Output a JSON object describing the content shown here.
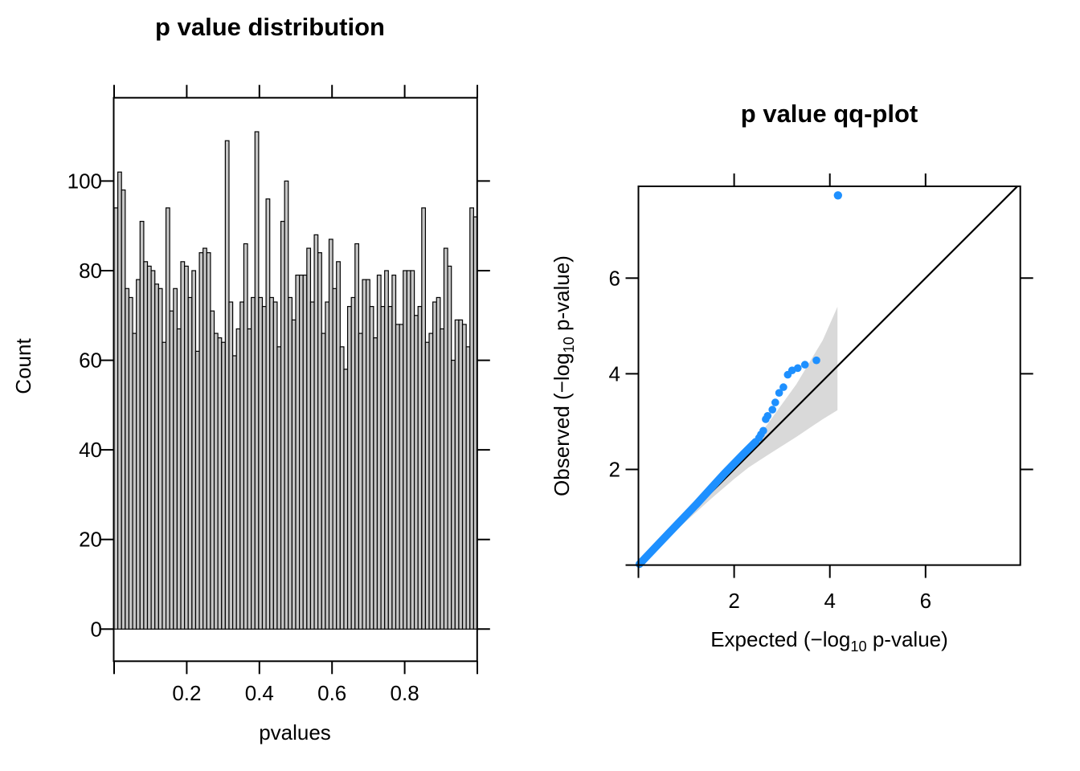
{
  "figure_background": "#ffffff",
  "chart_data": [
    {
      "id": "p-value-histogram",
      "type": "bar",
      "title": "p value distribution",
      "xlabel": "pvalues",
      "ylabel": "Count",
      "xlim": [
        0,
        1
      ],
      "ylim": [
        0,
        113
      ],
      "grid": false,
      "legend": "none",
      "x_ticks_labeled": [
        0.2,
        0.4,
        0.6,
        0.8
      ],
      "x_tick_labels": [
        "0.2",
        "0.4",
        "0.6",
        "0.8"
      ],
      "x_ticks_unlabeled": [
        0,
        1
      ],
      "y_ticks": [
        0,
        20,
        40,
        60,
        80,
        100
      ],
      "y_tick_labels": [
        "0",
        "20",
        "40",
        "60",
        "80",
        "100"
      ],
      "ticks_on_all_sides": true,
      "bin_start": 0,
      "bin_width": 0.0102,
      "bar_fill": "#C6C6C6",
      "bar_stroke": "#000000",
      "counts": [
        94,
        102,
        98,
        76,
        74,
        66,
        78,
        91,
        82,
        81,
        80,
        77,
        76,
        64,
        94,
        71,
        76,
        67,
        82,
        81,
        74,
        80,
        62,
        84,
        85,
        84,
        71,
        66,
        65,
        64,
        109,
        73,
        61,
        67,
        73,
        86,
        67,
        74,
        111,
        74,
        72,
        96,
        74,
        73,
        63,
        91,
        100,
        74,
        69,
        79,
        79,
        79,
        85,
        73,
        88,
        84,
        66,
        73,
        87,
        76,
        82,
        63,
        58,
        72,
        74,
        86,
        66,
        78,
        78,
        72,
        65,
        79,
        72,
        80,
        72,
        79,
        68,
        68,
        80,
        80,
        80,
        70,
        72,
        94,
        64,
        66,
        73,
        74,
        67,
        85,
        81,
        60,
        69,
        69,
        68,
        63,
        94,
        92
      ]
    },
    {
      "id": "p-value-qqplot",
      "type": "scatter",
      "title": "p value qq-plot",
      "xlabel": "Expected (−log10 p-value)",
      "ylabel": "Observed (−log10 p-value)",
      "xlabel_rich": {
        "pre": "Expected (−log",
        "sub": "10",
        "post": " p-value)"
      },
      "ylabel_rich": {
        "pre": "Observed (−log",
        "sub": "10",
        "post": " p-value)"
      },
      "xlim": [
        0,
        7.98
      ],
      "ylim": [
        0,
        7.92
      ],
      "grid": false,
      "legend": "none",
      "x_ticks_labeled": [
        2,
        4,
        6
      ],
      "x_tick_labels": [
        "2",
        "4",
        "6"
      ],
      "x_ticks_unlabeled": [
        0
      ],
      "y_ticks_labeled": [
        2,
        4,
        6
      ],
      "y_tick_labels": [
        "2",
        "4",
        "6"
      ],
      "y_ticks_unlabeled": [
        0
      ],
      "top_ticks": [
        2,
        4,
        6
      ],
      "right_ticks": [
        2,
        4,
        6
      ],
      "point_color": "#1E90FF",
      "identity_line": {
        "from": [
          0,
          0
        ],
        "to": [
          7.92,
          7.92
        ],
        "color": "#000000"
      },
      "confidence_band": {
        "color": "#D9D9D9",
        "upper": [
          [
            0,
            0
          ],
          [
            0.5,
            0.53
          ],
          [
            1.0,
            1.07
          ],
          [
            1.5,
            1.62
          ],
          [
            2.0,
            2.19
          ],
          [
            2.3,
            2.43
          ],
          [
            2.7,
            2.95
          ],
          [
            3.3,
            3.78
          ],
          [
            3.85,
            4.7
          ],
          [
            4.16,
            5.4
          ]
        ],
        "lower": [
          [
            0,
            0
          ],
          [
            0.5,
            0.45
          ],
          [
            1.0,
            0.92
          ],
          [
            1.5,
            1.37
          ],
          [
            2.0,
            1.8
          ],
          [
            2.3,
            2.04
          ],
          [
            2.7,
            2.3
          ],
          [
            3.3,
            2.68
          ],
          [
            3.85,
            3.05
          ],
          [
            4.16,
            3.24
          ]
        ]
      },
      "dense_quantile_line": [
        [
          0.02,
          0.02
        ],
        [
          0.6,
          0.63
        ],
        [
          1.2,
          1.26
        ],
        [
          1.8,
          1.92
        ],
        [
          2.2,
          2.33
        ],
        [
          2.45,
          2.58
        ]
      ],
      "points": [
        [
          2.52,
          2.66
        ],
        [
          2.56,
          2.73
        ],
        [
          2.61,
          2.81
        ],
        [
          2.66,
          3.05
        ],
        [
          2.7,
          3.12
        ],
        [
          2.8,
          3.25
        ],
        [
          2.86,
          3.4
        ],
        [
          2.94,
          3.6
        ],
        [
          3.03,
          3.72
        ],
        [
          3.12,
          3.98
        ],
        [
          3.21,
          4.07
        ],
        [
          3.33,
          4.12
        ],
        [
          3.48,
          4.19
        ],
        [
          3.72,
          4.28
        ]
      ],
      "outlier_point": [
        4.17,
        7.73
      ]
    }
  ]
}
